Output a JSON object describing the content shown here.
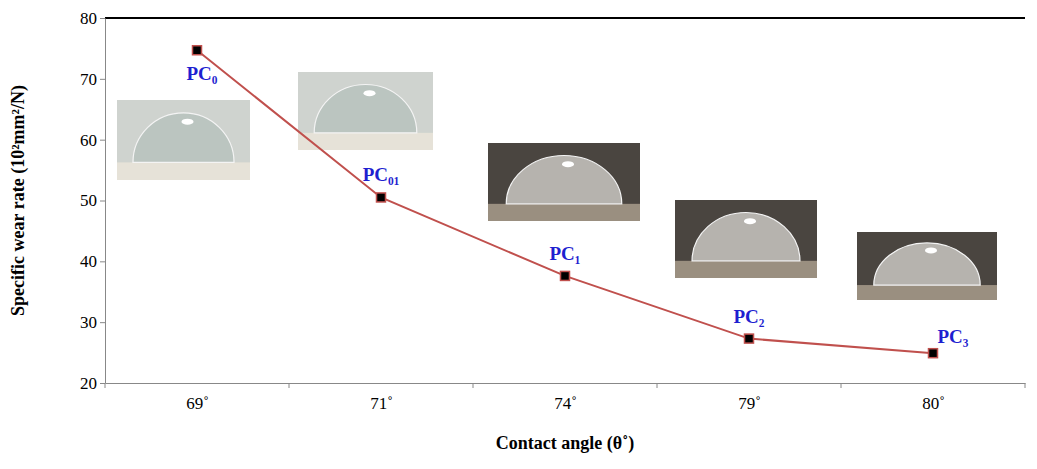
{
  "chart_data": {
    "type": "line",
    "x_label": "Contact angle (θ˚)",
    "y_label": "Specific wear rate (10²mm²/N)",
    "categories": [
      "69˚",
      "71˚",
      "74˚",
      "79˚",
      "80˚"
    ],
    "values": [
      74.7,
      50.5,
      37.6,
      27.3,
      24.9
    ],
    "point_labels": [
      "PC₀",
      "PC₀₁",
      "PC₁",
      "PC₂",
      "PC₃"
    ],
    "color": "#c0504d",
    "marker": "square",
    "ylim": [
      20,
      80
    ],
    "yticks": [
      20,
      30,
      40,
      50,
      60,
      70,
      80
    ],
    "grid": false
  }
}
